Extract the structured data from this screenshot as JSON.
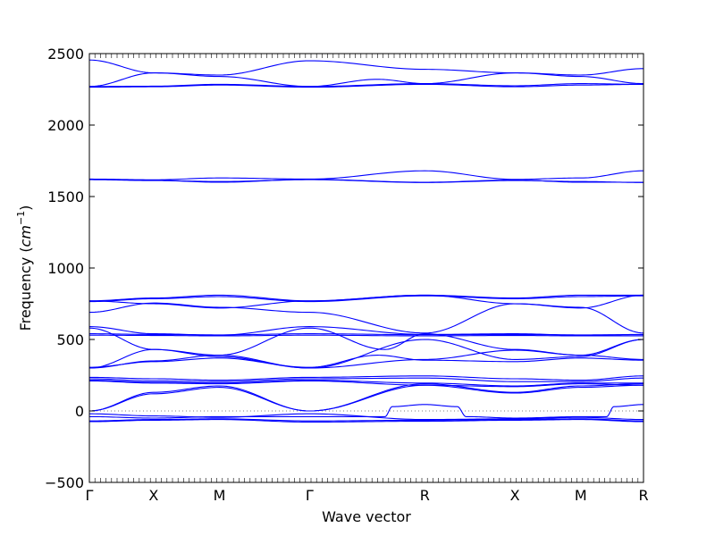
{
  "chart_data": {
    "type": "line",
    "xlabel": "Wave vector",
    "ylabel_text": "Frequency (",
    "ylabel_unit": "cm",
    "ylabel_unit_exp": "−1",
    "ylabel_close": ")",
    "ylim": [
      -500,
      2500
    ],
    "yticks": [
      -500,
      0,
      500,
      1000,
      1500,
      2000,
      2500
    ],
    "ytick_labels": [
      "−500",
      "0",
      "500",
      "1000",
      "1500",
      "2000",
      "2500"
    ],
    "xlim": [
      0,
      7.5
    ],
    "xticks": [
      {
        "x": 0,
        "label": "Γ"
      },
      {
        "x": 0.87,
        "label": "X"
      },
      {
        "x": 1.76,
        "label": "M"
      },
      {
        "x": 2.98,
        "label": "Γ"
      },
      {
        "x": 4.54,
        "label": "R"
      },
      {
        "x": 5.76,
        "label": "X"
      },
      {
        "x": 6.65,
        "label": "M"
      },
      {
        "x": 7.5,
        "label": "R"
      }
    ],
    "zero_line": true,
    "line_color": "#0000ff",
    "series": [
      {
        "x": [
          0,
          0.87,
          1.76,
          2.98,
          4.54,
          5.76,
          6.65,
          7.5
        ],
        "y": [
          2455,
          2365,
          2350,
          2450,
          2390,
          2365,
          2350,
          2395
        ]
      },
      {
        "x": [
          0,
          0.87,
          1.76,
          2.98,
          4.54,
          5.76,
          6.65,
          7.5
        ],
        "y": [
          2270,
          2365,
          2340,
          2270,
          2290,
          2365,
          2340,
          2290
        ]
      },
      {
        "x": [
          0,
          0.87,
          1.76,
          2.98,
          3.9,
          4.54,
          5.76,
          6.65,
          7.5
        ],
        "y": [
          2270,
          2272,
          2285,
          2270,
          2320,
          2290,
          2275,
          2290,
          2285
        ]
      },
      {
        "x": [
          0,
          0.87,
          1.76,
          2.98,
          4.54,
          5.76,
          6.65,
          7.5
        ],
        "y": [
          2265,
          2268,
          2280,
          2265,
          2285,
          2268,
          2280,
          2285
        ]
      },
      {
        "x": [
          0,
          0.87,
          1.76,
          2.98,
          4.54,
          5.76,
          6.65,
          7.5
        ],
        "y": [
          1622,
          1617,
          1630,
          1622,
          1680,
          1620,
          1630,
          1680
        ]
      },
      {
        "x": [
          0,
          0.87,
          1.76,
          2.98,
          4.54,
          5.76,
          6.65,
          7.5
        ],
        "y": [
          1620,
          1613,
          1600,
          1620,
          1600,
          1615,
          1600,
          1600
        ]
      },
      {
        "x": [
          0,
          0.87,
          1.76,
          2.98,
          4.54,
          5.76,
          6.65,
          7.5
        ],
        "y": [
          1618,
          1612,
          1605,
          1618,
          1598,
          1612,
          1605,
          1598
        ]
      },
      {
        "x": [
          0,
          0.87,
          1.76,
          2.98,
          4.54,
          5.76,
          6.65,
          7.5
        ],
        "y": [
          770,
          790,
          810,
          770,
          810,
          790,
          810,
          810
        ]
      },
      {
        "x": [
          0,
          0.87,
          1.76,
          2.98,
          4.54,
          5.76,
          6.65,
          7.5
        ],
        "y": [
          765,
          785,
          800,
          765,
          805,
          785,
          800,
          805
        ]
      },
      {
        "x": [
          0,
          0.87,
          1.76,
          2.98,
          4.54,
          5.76,
          6.65,
          7.5
        ],
        "y": [
          690,
          755,
          725,
          690,
          545,
          750,
          725,
          545
        ]
      },
      {
        "x": [
          0,
          0.87,
          1.76,
          2.98,
          4.54,
          5.76,
          6.65,
          7.5
        ],
        "y": [
          770,
          750,
          720,
          770,
          810,
          750,
          720,
          810
        ]
      },
      {
        "x": [
          0,
          0.87,
          1.76,
          2.98,
          4.54,
          5.76,
          6.65,
          7.5
        ],
        "y": [
          590,
          540,
          530,
          590,
          535,
          540,
          530,
          535
        ]
      },
      {
        "x": [
          0,
          0.87,
          1.76,
          2.98,
          4.54,
          5.76,
          6.65,
          7.5
        ],
        "y": [
          540,
          535,
          532,
          540,
          533,
          535,
          532,
          533
        ]
      },
      {
        "x": [
          0,
          0.87,
          1.76,
          2.98,
          4.54,
          5.76,
          6.65,
          7.5
        ],
        "y": [
          530,
          528,
          525,
          530,
          525,
          528,
          525,
          525
        ]
      },
      {
        "x": [
          0,
          0.87,
          1.76,
          2.98,
          4.0,
          4.54,
          5.76,
          6.65,
          7.5
        ],
        "y": [
          580,
          430,
          390,
          580,
          430,
          540,
          430,
          390,
          500
        ]
      },
      {
        "x": [
          0,
          0.87,
          1.76,
          2.98,
          4.54,
          5.76,
          6.65,
          7.5
        ],
        "y": [
          300,
          430,
          380,
          300,
          500,
          360,
          380,
          500
        ]
      },
      {
        "x": [
          0,
          0.87,
          1.76,
          2.98,
          4.54,
          5.76,
          6.65,
          7.5
        ],
        "y": [
          300,
          350,
          390,
          300,
          360,
          425,
          390,
          360
        ]
      },
      {
        "x": [
          0,
          0.87,
          1.76,
          2.98,
          3.9,
          4.54,
          5.76,
          6.65,
          7.5
        ],
        "y": [
          305,
          345,
          370,
          305,
          390,
          355,
          345,
          370,
          355
        ]
      },
      {
        "x": [
          0,
          0.87,
          1.76,
          2.98,
          4.54,
          5.76,
          6.65,
          7.5
        ],
        "y": [
          235,
          225,
          215,
          235,
          245,
          225,
          215,
          245
        ]
      },
      {
        "x": [
          0,
          0.87,
          1.76,
          2.98,
          4.54,
          5.76,
          6.65,
          7.5
        ],
        "y": [
          225,
          210,
          205,
          225,
          230,
          205,
          205,
          230
        ]
      },
      {
        "x": [
          0,
          0.87,
          1.76,
          2.98,
          4.54,
          5.76,
          6.65,
          7.5
        ],
        "y": [
          215,
          200,
          195,
          215,
          195,
          175,
          195,
          195
        ]
      },
      {
        "x": [
          0,
          0.87,
          1.76,
          2.98,
          4.54,
          5.76,
          6.65,
          7.5
        ],
        "y": [
          210,
          195,
          190,
          210,
          180,
          170,
          190,
          180
        ]
      },
      {
        "x": [
          0,
          0.87,
          1.76,
          2.98,
          4.54,
          5.76,
          6.65,
          7.5
        ],
        "y": [
          0,
          130,
          175,
          0,
          190,
          130,
          175,
          190
        ]
      },
      {
        "x": [
          0,
          0.87,
          1.76,
          2.98,
          4.54,
          5.76,
          6.65,
          7.5
        ],
        "y": [
          0,
          120,
          165,
          0,
          180,
          125,
          165,
          180
        ]
      },
      {
        "x": [
          0,
          0.87,
          1.76,
          2.98,
          4.54,
          5.76,
          6.65,
          7.5
        ],
        "y": [
          -20,
          -35,
          -45,
          -20,
          -60,
          -55,
          -45,
          -60
        ]
      },
      {
        "x": [
          0,
          0.87,
          1.76,
          2.98,
          4.0,
          4.1,
          4.54,
          4.98,
          5.1,
          5.76,
          6.65,
          7.0,
          7.1,
          7.5
        ],
        "y": [
          -40,
          -50,
          -40,
          -40,
          -40,
          30,
          45,
          30,
          -40,
          -50,
          -40,
          -40,
          30,
          45
        ]
      },
      {
        "x": [
          0,
          0.87,
          1.76,
          2.98,
          4.54,
          5.76,
          6.65,
          7.5
        ],
        "y": [
          -70,
          -60,
          -55,
          -70,
          -65,
          -60,
          -55,
          -70
        ]
      },
      {
        "x": [
          0,
          0.87,
          1.76,
          2.98,
          4.54,
          5.76,
          6.65,
          7.5
        ],
        "y": [
          -75,
          -65,
          -60,
          -78,
          -72,
          -65,
          -60,
          -75
        ]
      }
    ]
  }
}
